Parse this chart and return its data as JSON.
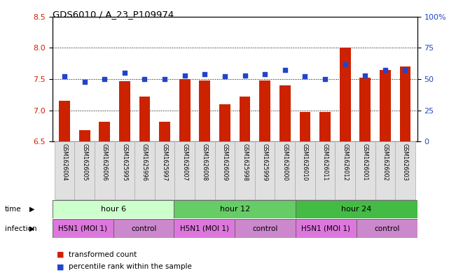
{
  "title": "GDS6010 / A_23_P109974",
  "samples": [
    "GSM1626004",
    "GSM1626005",
    "GSM1626006",
    "GSM1625995",
    "GSM1625996",
    "GSM1625997",
    "GSM1626007",
    "GSM1626008",
    "GSM1626009",
    "GSM1625998",
    "GSM1625999",
    "GSM1626000",
    "GSM1626010",
    "GSM1626011",
    "GSM1626012",
    "GSM1626001",
    "GSM1626002",
    "GSM1626003"
  ],
  "transformed_count": [
    7.15,
    6.68,
    6.82,
    7.47,
    7.22,
    6.82,
    7.5,
    7.48,
    7.1,
    7.22,
    7.48,
    7.4,
    6.97,
    6.97,
    8.0,
    7.52,
    7.65,
    7.7
  ],
  "percentile_rank": [
    52,
    48,
    50,
    55,
    50,
    50,
    53,
    54,
    52,
    53,
    54,
    57,
    52,
    50,
    62,
    53,
    57,
    57
  ],
  "ylim_left": [
    6.5,
    8.5
  ],
  "ylim_right": [
    0,
    100
  ],
  "yticks_left": [
    6.5,
    7.0,
    7.5,
    8.0,
    8.5
  ],
  "yticks_right": [
    0,
    25,
    50,
    75,
    100
  ],
  "ytick_labels_right": [
    "0",
    "25",
    "50",
    "75",
    "100%"
  ],
  "bar_color": "#cc2200",
  "dot_color": "#2244cc",
  "time_groups": [
    {
      "label": "hour 6",
      "start": 0,
      "end": 6,
      "color": "#ccffcc"
    },
    {
      "label": "hour 12",
      "start": 6,
      "end": 12,
      "color": "#66cc66"
    },
    {
      "label": "hour 24",
      "start": 12,
      "end": 18,
      "color": "#44bb44"
    }
  ],
  "infection_groups": [
    {
      "label": "H5N1 (MOI 1)",
      "start": 0,
      "end": 3,
      "color": "#dd77dd"
    },
    {
      "label": "control",
      "start": 3,
      "end": 6,
      "color": "#cc88cc"
    },
    {
      "label": "H5N1 (MOI 1)",
      "start": 6,
      "end": 9,
      "color": "#dd77dd"
    },
    {
      "label": "control",
      "start": 9,
      "end": 12,
      "color": "#cc88cc"
    },
    {
      "label": "H5N1 (MOI 1)",
      "start": 12,
      "end": 15,
      "color": "#dd77dd"
    },
    {
      "label": "control",
      "start": 15,
      "end": 18,
      "color": "#cc88cc"
    }
  ]
}
